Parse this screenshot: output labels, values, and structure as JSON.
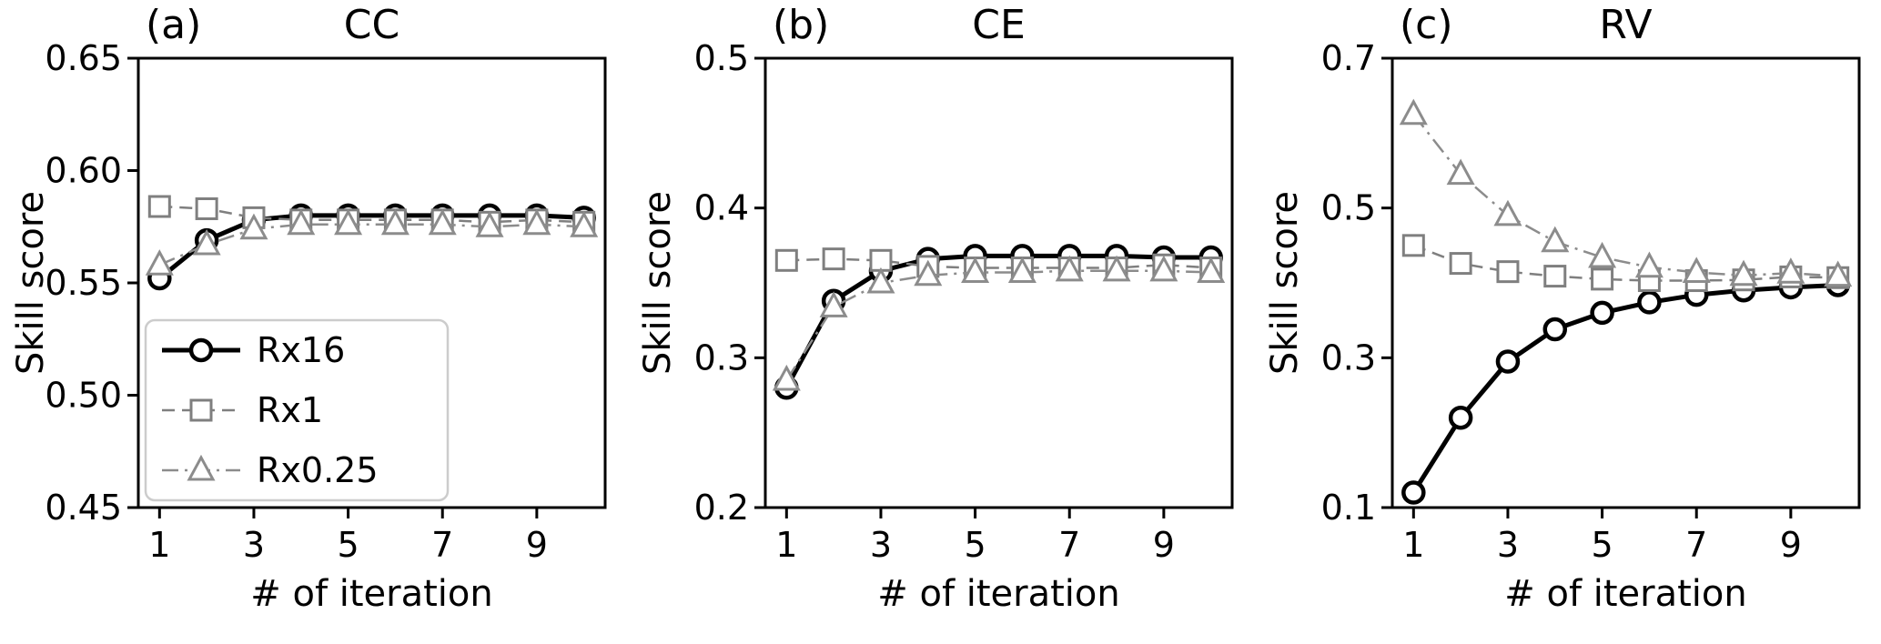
{
  "figure": {
    "background": "#ffffff",
    "text_color": "#000000",
    "axis_color": "#000000",
    "legend_border_color": "#cccccc"
  },
  "chart_data": [
    {
      "type": "line",
      "panel_label": "(a)",
      "title": "CC",
      "xlabel": "# of iteration",
      "ylabel": "Skill score",
      "xlim": [
        0.55,
        10.45
      ],
      "ylim": [
        0.45,
        0.65
      ],
      "xticks": [
        1,
        3,
        5,
        7,
        9
      ],
      "yticks": [
        0.45,
        0.5,
        0.55,
        0.6,
        0.65
      ],
      "ytick_labels": [
        "0.45",
        "0.50",
        "0.55",
        "0.60",
        "0.65"
      ],
      "x": [
        1,
        2,
        3,
        4,
        5,
        6,
        7,
        8,
        9,
        10
      ],
      "series": [
        {
          "name": "Rx16",
          "marker": "circle",
          "line": "solid",
          "color": "#000000",
          "linewidth": 5,
          "values": [
            0.552,
            0.569,
            0.578,
            0.58,
            0.58,
            0.58,
            0.58,
            0.58,
            0.58,
            0.579
          ]
        },
        {
          "name": "Rx1",
          "marker": "square",
          "line": "dashed",
          "color": "#7f7f7f",
          "linewidth": 2.5,
          "values": [
            0.584,
            0.583,
            0.579,
            0.578,
            0.578,
            0.578,
            0.578,
            0.577,
            0.578,
            0.577
          ]
        },
        {
          "name": "Rx0.25",
          "marker": "triangle",
          "line": "dashdot",
          "color": "#8c8c8c",
          "linewidth": 2.5,
          "values": [
            0.558,
            0.567,
            0.574,
            0.576,
            0.576,
            0.576,
            0.576,
            0.575,
            0.576,
            0.575
          ]
        }
      ],
      "legend": {
        "show": true,
        "location": "lower left",
        "entries": [
          "Rx16",
          "Rx1",
          "Rx0.25"
        ]
      }
    },
    {
      "type": "line",
      "panel_label": "(b)",
      "title": "CE",
      "xlabel": "# of iteration",
      "ylabel": "Skill score",
      "xlim": [
        0.55,
        10.45
      ],
      "ylim": [
        0.2,
        0.5
      ],
      "xticks": [
        1,
        3,
        5,
        7,
        9
      ],
      "yticks": [
        0.2,
        0.3,
        0.4,
        0.5
      ],
      "ytick_labels": [
        "0.2",
        "0.3",
        "0.4",
        "0.5"
      ],
      "x": [
        1,
        2,
        3,
        4,
        5,
        6,
        7,
        8,
        9,
        10
      ],
      "series": [
        {
          "name": "Rx16",
          "marker": "circle",
          "line": "solid",
          "color": "#000000",
          "linewidth": 5,
          "values": [
            0.28,
            0.338,
            0.358,
            0.366,
            0.368,
            0.368,
            0.368,
            0.368,
            0.367,
            0.367
          ]
        },
        {
          "name": "Rx1",
          "marker": "square",
          "line": "dashed",
          "color": "#7f7f7f",
          "linewidth": 2.5,
          "values": [
            0.365,
            0.366,
            0.365,
            0.361,
            0.36,
            0.36,
            0.36,
            0.36,
            0.362,
            0.36
          ]
        },
        {
          "name": "Rx0.25",
          "marker": "triangle",
          "line": "dashdot",
          "color": "#8c8c8c",
          "linewidth": 2.5,
          "values": [
            0.285,
            0.334,
            0.35,
            0.355,
            0.357,
            0.357,
            0.358,
            0.358,
            0.358,
            0.357
          ]
        }
      ],
      "legend": {
        "show": false
      }
    },
    {
      "type": "line",
      "panel_label": "(c)",
      "title": "RV",
      "xlabel": "# of iteration",
      "ylabel": "Skill score",
      "xlim": [
        0.55,
        10.45
      ],
      "ylim": [
        0.1,
        0.7
      ],
      "xticks": [
        1,
        3,
        5,
        7,
        9
      ],
      "yticks": [
        0.1,
        0.3,
        0.5,
        0.7
      ],
      "ytick_labels": [
        "0.1",
        "0.3",
        "0.5",
        "0.7"
      ],
      "x": [
        1,
        2,
        3,
        4,
        5,
        6,
        7,
        8,
        9,
        10
      ],
      "series": [
        {
          "name": "Rx16",
          "marker": "circle",
          "line": "solid",
          "color": "#000000",
          "linewidth": 5,
          "values": [
            0.12,
            0.22,
            0.295,
            0.338,
            0.36,
            0.374,
            0.384,
            0.39,
            0.394,
            0.397
          ]
        },
        {
          "name": "Rx1",
          "marker": "square",
          "line": "dashed",
          "color": "#7f7f7f",
          "linewidth": 2.5,
          "values": [
            0.45,
            0.426,
            0.415,
            0.409,
            0.405,
            0.403,
            0.403,
            0.404,
            0.408,
            0.407
          ]
        },
        {
          "name": "Rx0.25",
          "marker": "triangle",
          "line": "dashdot",
          "color": "#8c8c8c",
          "linewidth": 2.5,
          "values": [
            0.625,
            0.545,
            0.49,
            0.455,
            0.434,
            0.421,
            0.414,
            0.41,
            0.413,
            0.409
          ]
        }
      ],
      "legend": {
        "show": false
      }
    }
  ]
}
